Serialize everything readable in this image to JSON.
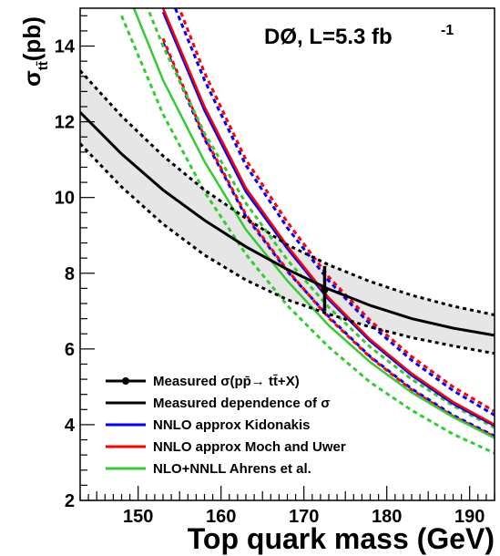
{
  "chart_data": {
    "type": "line",
    "title": "",
    "annotation": {
      "experiment": "DØ, L=5.3 fb",
      "lumi_exponent": "-1"
    },
    "xlabel": "Top quark mass (GeV)",
    "ylabel_main": "σ",
    "ylabel_sub": "tt̄",
    "ylabel_unit": "(pb)",
    "xlim": [
      143,
      193
    ],
    "ylim": [
      2,
      15
    ],
    "x_ticks": [
      150,
      160,
      170,
      180,
      190
    ],
    "y_ticks": [
      2,
      4,
      6,
      8,
      10,
      12,
      14
    ],
    "grid": false,
    "legend_position": "bottom-left",
    "measured_point": {
      "x": 172.5,
      "y": 7.56,
      "err_low": 0.56,
      "err_high": 0.63
    },
    "measured_dependence": {
      "color": "#000000",
      "x": [
        143,
        148,
        153,
        158,
        163,
        168,
        173,
        178,
        183,
        188,
        193
      ],
      "central": [
        12.25,
        11.15,
        10.2,
        9.4,
        8.7,
        8.1,
        7.58,
        7.15,
        6.8,
        6.55,
        6.36
      ],
      "upper": [
        13.35,
        12.15,
        11.1,
        10.2,
        9.45,
        8.75,
        8.22,
        7.78,
        7.42,
        7.13,
        6.9
      ],
      "lower": [
        11.42,
        10.28,
        9.3,
        8.48,
        7.82,
        7.3,
        6.92,
        6.58,
        6.3,
        6.08,
        5.88
      ]
    },
    "series": [
      {
        "name": "NNLO approx Kidonakis",
        "color": "#0000ff",
        "x": [
          153,
          158,
          163,
          168,
          173,
          178,
          183,
          188,
          193
        ],
        "central": [
          14.9,
          12.3,
          10.15,
          8.65,
          7.3,
          6.2,
          5.3,
          4.55,
          3.97
        ],
        "upper": [
          15.8,
          13.1,
          10.85,
          9.2,
          7.8,
          6.65,
          5.7,
          4.9,
          4.25
        ],
        "lower": [
          14.1,
          11.55,
          9.5,
          8.05,
          6.85,
          5.8,
          4.95,
          4.25,
          3.7
        ]
      },
      {
        "name": "NNLO approx Moch and Uwer",
        "color": "#ff0000",
        "x": [
          153,
          158,
          163,
          168,
          173,
          178,
          183,
          188,
          193
        ],
        "central": [
          15.0,
          12.4,
          10.25,
          8.72,
          7.35,
          6.25,
          5.35,
          4.6,
          4.0
        ],
        "upper": [
          16.1,
          13.3,
          11.0,
          9.35,
          7.9,
          6.75,
          5.8,
          5.0,
          4.35
        ],
        "lower": [
          14.2,
          11.6,
          9.55,
          8.08,
          6.82,
          5.78,
          4.92,
          4.22,
          3.68
        ]
      },
      {
        "name": "NLO+NNLL Ahrens et al.",
        "color": "#33cc33",
        "x": [
          148,
          153,
          158,
          163,
          168,
          173,
          178,
          183,
          188,
          193
        ],
        "central": [
          15.8,
          13.1,
          10.95,
          9.15,
          7.8,
          6.62,
          5.65,
          4.85,
          4.2,
          3.65
        ],
        "upper": [
          16.7,
          14.0,
          11.7,
          9.85,
          8.35,
          7.1,
          6.05,
          5.2,
          4.5,
          3.92
        ],
        "lower": [
          14.8,
          12.2,
          10.15,
          8.5,
          7.15,
          6.05,
          5.12,
          4.38,
          3.75,
          3.25
        ]
      }
    ],
    "legend": [
      {
        "label": "Measured σ(pp̄→ tt̄+X)",
        "style": "point"
      },
      {
        "label": "Measured dependence of σ",
        "style": "black-line"
      },
      {
        "label": "NNLO approx Kidonakis",
        "style": "blue-line"
      },
      {
        "label": "NNLO approx Moch and Uwer",
        "style": "red-line"
      },
      {
        "label": "NLO+NNLL Ahrens et al.",
        "style": "green-line"
      }
    ]
  }
}
